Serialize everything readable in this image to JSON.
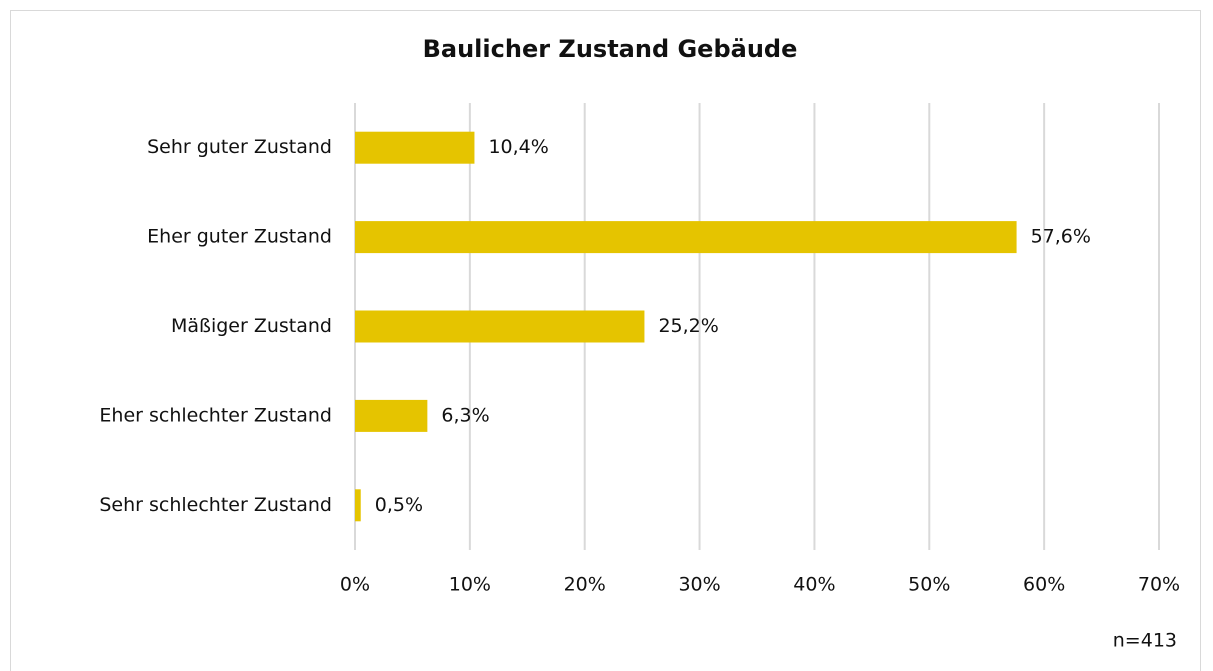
{
  "chart_data": {
    "type": "bar",
    "orientation": "horizontal",
    "title": "Baulicher Zustand Gebäude",
    "categories": [
      "Sehr guter Zustand",
      "Eher guter Zustand",
      "Mäßiger Zustand",
      "Eher schlechter Zustand",
      "Sehr schlechter Zustand"
    ],
    "values": [
      10.4,
      57.6,
      25.2,
      6.3,
      0.5
    ],
    "value_labels": [
      "10,4%",
      "57,6%",
      "25,2%",
      "6,3%",
      "0,5%"
    ],
    "color": "#e5c400",
    "xlim": [
      0,
      70
    ],
    "xticks": [
      {
        "value": 0,
        "label": "0%"
      },
      {
        "value": 10,
        "label": "10%"
      },
      {
        "value": 20,
        "label": "20%"
      },
      {
        "value": 30,
        "label": "30%"
      },
      {
        "value": 40,
        "label": "40%"
      },
      {
        "value": 50,
        "label": "50%"
      },
      {
        "value": 60,
        "label": "60%"
      },
      {
        "value": 70,
        "label": "70%"
      }
    ],
    "grid": true,
    "annotation": "n=413"
  }
}
